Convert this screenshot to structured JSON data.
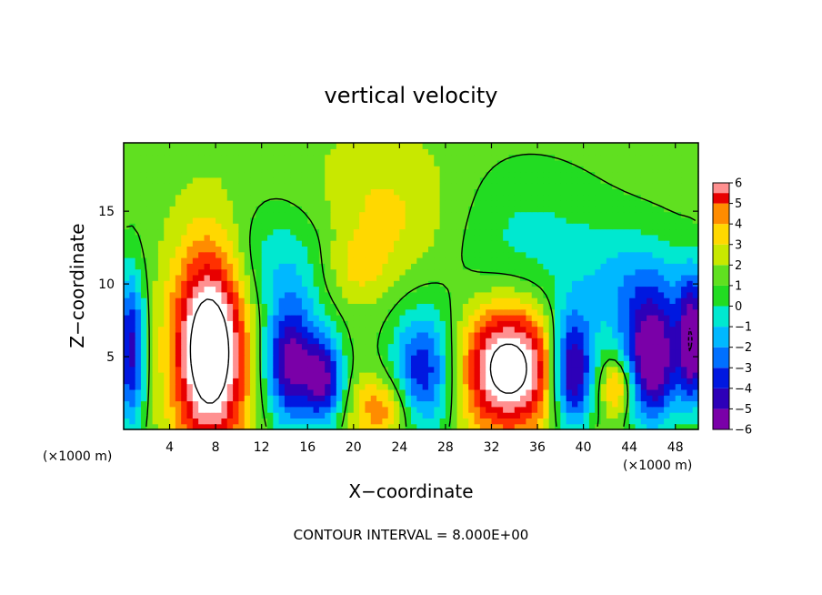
{
  "chart_data": {
    "type": "heatmap",
    "title": "vertical velocity",
    "xlabel": "X−coordinate",
    "ylabel": "Z−coordinate",
    "x_units": "(×1000 m)",
    "z_units": "(×1000 m)",
    "footer": "CONTOUR INTERVAL = 8.000E+00",
    "xlim": [
      0,
      50
    ],
    "ylim": [
      0,
      19.7
    ],
    "x_ticks": [
      4,
      8,
      12,
      16,
      20,
      24,
      28,
      32,
      36,
      40,
      44,
      48
    ],
    "y_ticks": [
      5,
      10,
      15
    ],
    "colorbar": {
      "min": -6,
      "max": 6,
      "ticks": [
        6,
        5,
        4,
        3,
        2,
        1,
        0,
        -1,
        -2,
        -3,
        -4,
        -5,
        -6
      ],
      "tick_labels": [
        "6",
        "5",
        "4",
        "3",
        "2",
        "1",
        "0",
        "−1",
        "−2",
        "−3",
        "−4",
        "−5",
        "−6"
      ],
      "colors": [
        "#7a00a8",
        "#2d00b8",
        "#0018e0",
        "#0070ff",
        "#00b8ff",
        "#00e8d0",
        "#22dc22",
        "#60e020",
        "#c8e800",
        "#ffd800",
        "#ff8c00",
        "#ff3000",
        "#e80000",
        "#ff9090",
        "#ffffff"
      ],
      "clip_above_color": "#ffffff"
    },
    "features": [
      {
        "kind": "updraft",
        "x": 7.5,
        "z": 5.5,
        "sx": 2.2,
        "sz": 4.8,
        "w": 10.0
      },
      {
        "kind": "updraft",
        "x": 33.5,
        "z": 4.3,
        "sx": 2.8,
        "sz": 3.0,
        "w": 9.0
      },
      {
        "kind": "updraft",
        "x": 22.5,
        "z": 1.5,
        "sx": 1.8,
        "sz": 1.6,
        "w": 3.5
      },
      {
        "kind": "updraft",
        "x": 43.0,
        "z": 3.0,
        "sx": 1.0,
        "sz": 1.4,
        "w": 4.0
      },
      {
        "kind": "updraft",
        "x": 23.5,
        "z": 14.5,
        "sx": 5.0,
        "sz": 3.5,
        "w": 2.0
      },
      {
        "kind": "updraft",
        "x": 20.0,
        "z": 11.0,
        "sx": 2.0,
        "sz": 1.6,
        "w": 1.5
      },
      {
        "kind": "downdraft",
        "x": 14.5,
        "z": 4.5,
        "sx": 1.6,
        "sz": 3.0,
        "w": -7.0
      },
      {
        "kind": "downdraft",
        "x": 17.5,
        "z": 3.5,
        "sx": 1.2,
        "sz": 2.2,
        "w": -6.0
      },
      {
        "kind": "downdraft",
        "x": 26.0,
        "z": 4.0,
        "sx": 2.0,
        "sz": 3.0,
        "w": -5.5
      },
      {
        "kind": "downdraft",
        "x": 39.0,
        "z": 4.0,
        "sx": 1.3,
        "sz": 2.8,
        "w": -7.5
      },
      {
        "kind": "downdraft",
        "x": 46.0,
        "z": 4.5,
        "sx": 1.8,
        "sz": 3.0,
        "w": -7.5
      },
      {
        "kind": "downdraft",
        "x": 49.5,
        "z": 6.0,
        "sx": 0.8,
        "sz": 3.0,
        "w": -7.0
      },
      {
        "kind": "downdraft",
        "x": 0.6,
        "z": 5.5,
        "sx": 0.9,
        "sz": 4.0,
        "w": -6.0
      },
      {
        "kind": "downdraft",
        "x": 14.0,
        "z": 11.5,
        "sx": 3.5,
        "sz": 3.0,
        "w": -2.5
      },
      {
        "kind": "downdraft",
        "x": 34.0,
        "z": 13.0,
        "sx": 6.0,
        "sz": 4.0,
        "w": -2.0
      },
      {
        "kind": "downdraft",
        "x": 45.0,
        "z": 9.5,
        "sx": 4.0,
        "sz": 3.0,
        "w": -3.0
      }
    ]
  }
}
